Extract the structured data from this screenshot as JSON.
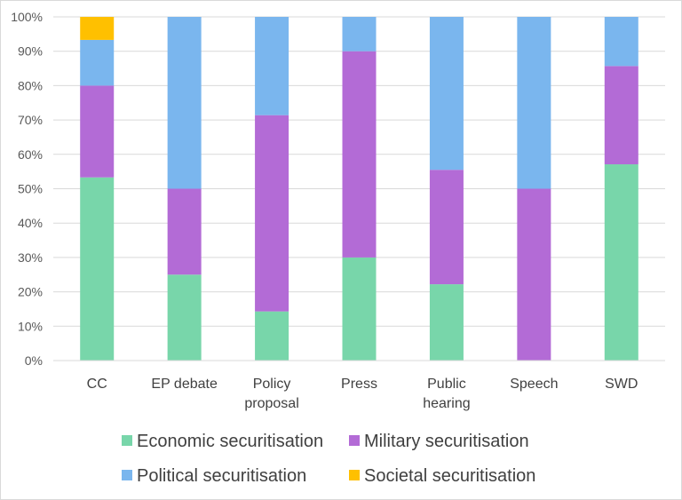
{
  "chart_data": {
    "type": "bar",
    "stacked": true,
    "normalized": true,
    "categories": [
      "CC",
      "EP debate",
      "Policy proposal",
      "Press",
      "Public hearing",
      "Speech",
      "SWD"
    ],
    "category_lines": [
      [
        "CC"
      ],
      [
        "EP debate"
      ],
      [
        "Policy",
        "proposal"
      ],
      [
        "Press"
      ],
      [
        "Public",
        "hearing"
      ],
      [
        "Speech"
      ],
      [
        "SWD"
      ]
    ],
    "series": [
      {
        "name": "Economic securitisation",
        "color": "#78d6aa",
        "values": [
          53.3,
          25,
          14.3,
          30,
          22.2,
          0,
          57.1
        ]
      },
      {
        "name": "Military securitisation",
        "color": "#b36bd6",
        "values": [
          26.7,
          25,
          57.1,
          60,
          33.3,
          50,
          28.6
        ]
      },
      {
        "name": "Political securitisation",
        "color": "#7ab6ee",
        "values": [
          13.3,
          50,
          28.6,
          10,
          44.5,
          50,
          14.3
        ]
      },
      {
        "name": "Societal securitisation",
        "color": "#ffc000",
        "values": [
          6.7,
          0,
          0,
          0,
          0,
          0,
          0
        ]
      }
    ],
    "ylim": [
      0,
      100
    ],
    "y_ticks": [
      "0%",
      "10%",
      "20%",
      "30%",
      "40%",
      "50%",
      "60%",
      "70%",
      "80%",
      "90%",
      "100%"
    ],
    "grid": true,
    "legend_position": "bottom"
  }
}
